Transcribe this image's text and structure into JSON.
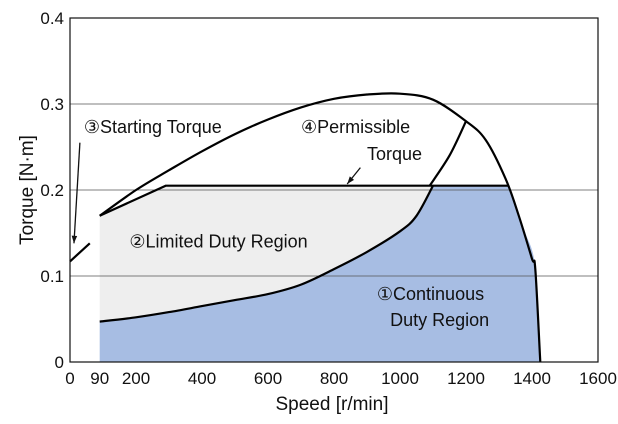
{
  "chart_data": {
    "type": "area",
    "title": "",
    "xlabel": "Speed [r/min]",
    "ylabel": "Torque [N·m]",
    "xlim": [
      0,
      1600
    ],
    "ylim": [
      0,
      0.4
    ],
    "xticks": [
      0,
      90,
      200,
      400,
      600,
      800,
      1000,
      1200,
      1400,
      1600
    ],
    "xtick_labels": [
      "0",
      "90",
      "200",
      "400",
      "600",
      "800",
      "1000",
      "1200",
      "1400",
      "1600"
    ],
    "yticks": [
      0,
      0.1,
      0.2,
      0.3,
      0.4
    ],
    "ytick_labels": [
      "0",
      "0.1",
      "0.2",
      "0.3",
      "0.4"
    ],
    "grid": "horizontal",
    "colors": {
      "continuous_fill": "#a7bde3",
      "limited_fill": "#eeeeee",
      "line": "#000000",
      "grid": "#555555"
    },
    "series": [
      {
        "name": "Continuous Duty Region",
        "label": "①Continuous Duty Region",
        "label_lines": [
          "①Continuous",
          "Duty Region"
        ],
        "points": [
          [
            90,
            0.047
          ],
          [
            200,
            0.052
          ],
          [
            300,
            0.058
          ],
          [
            400,
            0.065
          ],
          [
            500,
            0.072
          ],
          [
            600,
            0.079
          ],
          [
            700,
            0.09
          ],
          [
            800,
            0.108
          ],
          [
            900,
            0.128
          ],
          [
            1000,
            0.152
          ],
          [
            1050,
            0.17
          ],
          [
            1100,
            0.205
          ],
          [
            1330,
            0.205
          ],
          [
            1350,
            0.18
          ],
          [
            1380,
            0.15
          ],
          [
            1410,
            0.11
          ],
          [
            1425,
            0.0
          ]
        ]
      },
      {
        "name": "Limited Duty Region",
        "label": "②Limited Duty Region",
        "points": [
          [
            90,
            0.17
          ],
          [
            290,
            0.205
          ],
          [
            1330,
            0.205
          ]
        ]
      },
      {
        "name": "Starting Torque",
        "label": "③Starting Torque",
        "points": [
          [
            0,
            0.117
          ],
          [
            60,
            0.138
          ]
        ]
      },
      {
        "name": "Permissible Torque",
        "label": "④Permissible Torque",
        "label_lines": [
          "④Permissible",
          "Torque"
        ],
        "points": [
          [
            90,
            0.17
          ],
          [
            200,
            0.2
          ],
          [
            300,
            0.223
          ],
          [
            400,
            0.245
          ],
          [
            500,
            0.265
          ],
          [
            600,
            0.282
          ],
          [
            700,
            0.296
          ],
          [
            800,
            0.306
          ],
          [
            900,
            0.311
          ],
          [
            1000,
            0.312
          ],
          [
            1100,
            0.305
          ],
          [
            1200,
            0.28
          ],
          [
            1260,
            0.258
          ],
          [
            1320,
            0.213
          ],
          [
            1360,
            0.17
          ],
          [
            1400,
            0.12
          ],
          [
            1410,
            0.108
          ],
          [
            1425,
            0.0
          ]
        ]
      },
      {
        "name": "Permissible Torque boundary",
        "points": [
          [
            1090,
            0.205
          ],
          [
            1150,
            0.24
          ],
          [
            1200,
            0.28
          ]
        ]
      }
    ]
  }
}
